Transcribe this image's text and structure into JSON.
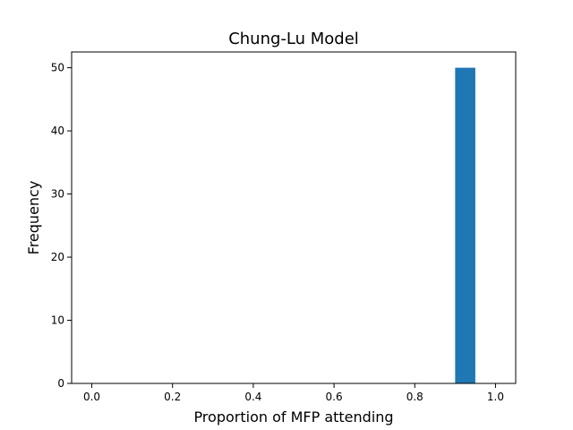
{
  "chart_data": {
    "type": "bar",
    "title": "Chung-Lu Model",
    "xlabel": "Proportion of MFP attending",
    "ylabel": "Frequency",
    "xlim": [
      -0.05,
      1.05
    ],
    "ylim": [
      0,
      52.5
    ],
    "xticks": [
      0.0,
      0.2,
      0.4,
      0.6,
      0.8,
      1.0
    ],
    "xtick_labels": [
      "0.0",
      "0.2",
      "0.4",
      "0.6",
      "0.8",
      "1.0"
    ],
    "yticks": [
      0,
      10,
      20,
      30,
      40,
      50
    ],
    "ytick_labels": [
      "0",
      "10",
      "20",
      "30",
      "40",
      "50"
    ],
    "bins": [
      {
        "x0": 0.9,
        "x1": 0.95,
        "count": 50
      }
    ],
    "bar_color": "#1f77b4",
    "grid": false,
    "legend": false
  }
}
